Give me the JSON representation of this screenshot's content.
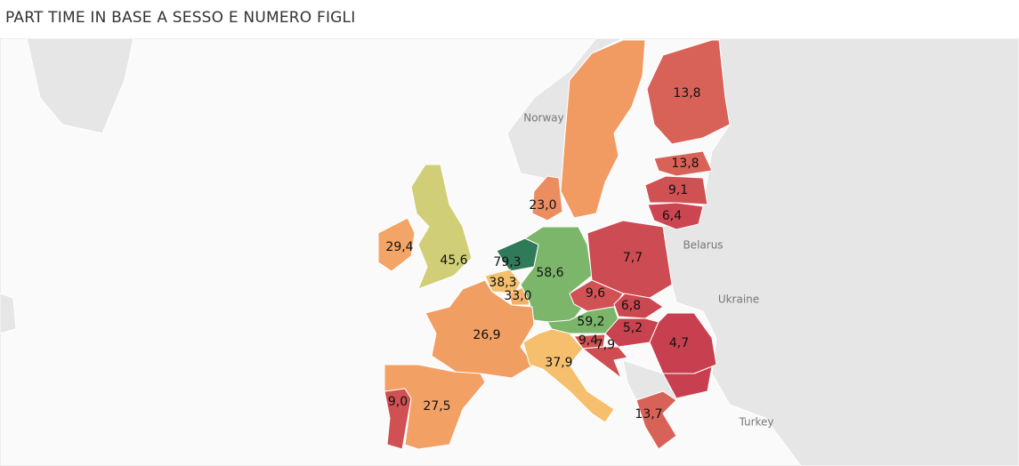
{
  "title": "PART TIME IN BASE A SESSO E NUMERO FIGLI",
  "map_labels": [
    "Norway",
    "Belarus",
    "Ukraine",
    "Turkey"
  ],
  "chart_data": {
    "type": "map",
    "values": [
      13.8,
      13.8,
      9.1,
      6.4,
      23.0,
      29.4,
      45.6,
      79.3,
      38.3,
      33.0,
      58.6,
      7.7,
      9.6,
      6.8,
      59.2,
      5.2,
      9.4,
      7.9,
      4.7,
      26.9,
      37.9,
      9.0,
      27.5,
      13.7
    ],
    "value_labels": [
      "13,8",
      "13,8",
      "9,1",
      "6,4",
      "23,0",
      "29,4",
      "45,6",
      "79,3",
      "38,3",
      "33,0",
      "58,6",
      "7,7",
      "9,6",
      "6,8",
      "59,2",
      "5,2",
      "9,4",
      "7,9",
      "4,7",
      "26,9",
      "37,9",
      "9,0",
      "27,5",
      "13,7"
    ]
  }
}
